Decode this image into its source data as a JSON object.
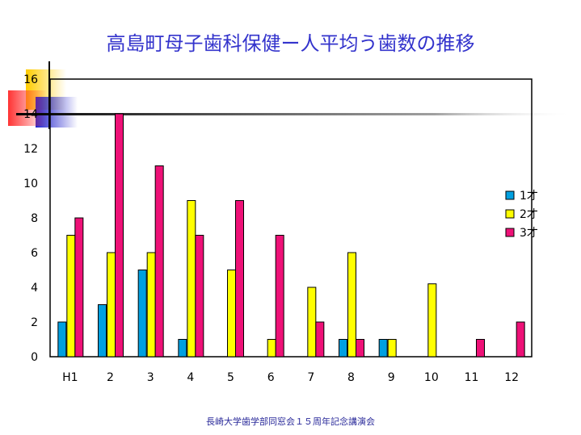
{
  "title": "高島町母子歯科保健ー人平均う歯数の推移",
  "footer": "長崎大学歯学部同窓会１５周年記念講演会",
  "colors": {
    "title": "#3333cc",
    "deco_yellow": "#ffcc00",
    "deco_red": "#ff3333",
    "deco_blue": "#2222cc"
  },
  "chart_data": {
    "type": "bar",
    "title": "",
    "xlabel": "",
    "ylabel": "",
    "categories": [
      "H1",
      "2",
      "3",
      "4",
      "5",
      "6",
      "7",
      "8",
      "9",
      "10",
      "11",
      "12"
    ],
    "ylim": [
      0,
      16
    ],
    "yticks": [
      0,
      2,
      4,
      6,
      8,
      10,
      12,
      14,
      16
    ],
    "grid": false,
    "legend_position": "right",
    "series": [
      {
        "name": "1才",
        "color": "#00a0e0",
        "values": [
          2,
          3,
          5,
          1,
          0,
          0,
          0,
          1,
          1,
          0,
          0,
          0
        ]
      },
      {
        "name": "2才",
        "color": "#ffff00",
        "values": [
          7,
          6,
          6,
          9,
          5,
          1,
          4,
          6,
          1,
          4.2,
          0,
          0
        ]
      },
      {
        "name": "3才",
        "color": "#ee1177",
        "values": [
          8,
          14,
          11,
          7,
          9,
          7,
          2,
          1,
          0,
          0,
          1,
          2
        ]
      }
    ]
  }
}
